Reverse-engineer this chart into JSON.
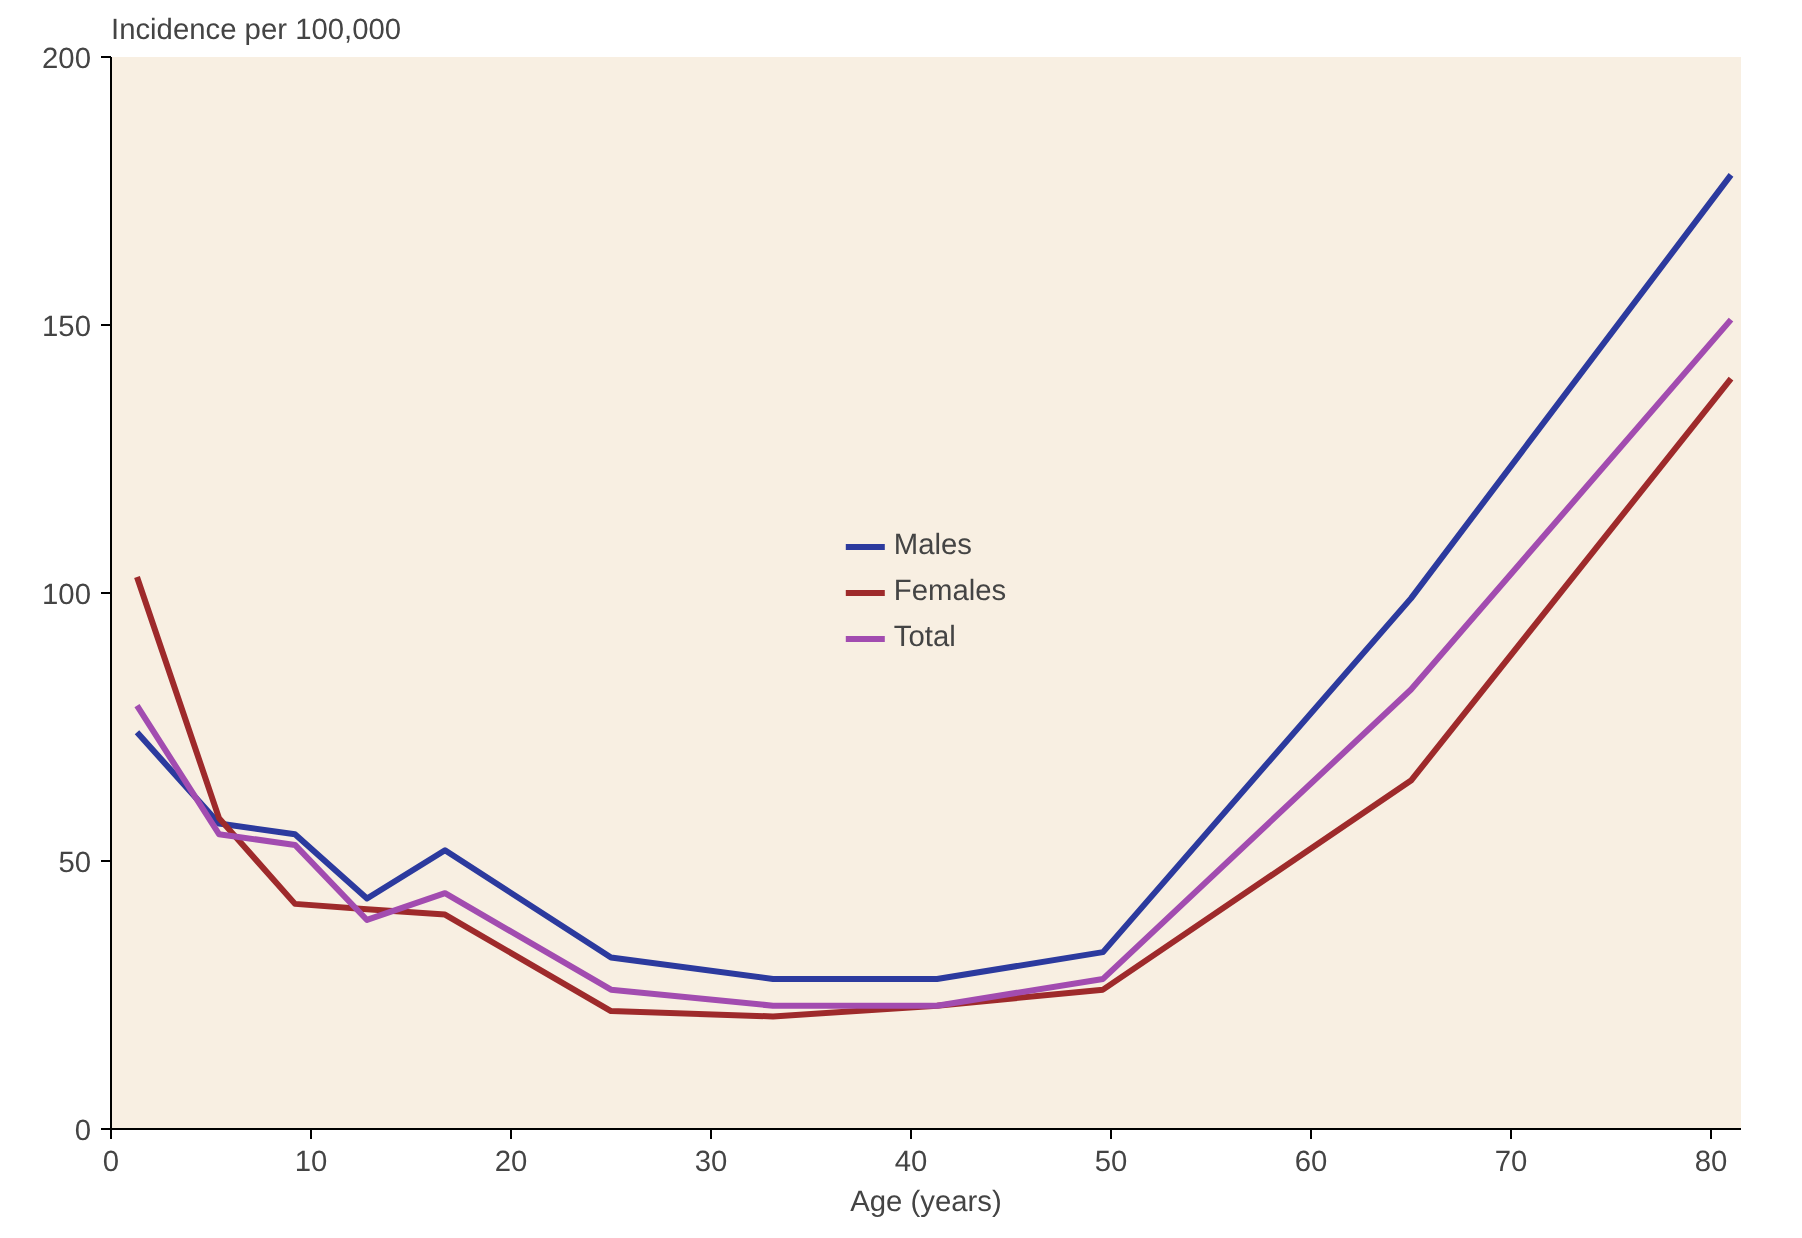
{
  "chart_data": {
    "type": "line",
    "ylabel": "Incidence per 100,000",
    "xlabel": "Age (years)",
    "x": [
      1.3,
      5.4,
      9.2,
      12.8,
      16.7,
      25,
      33.1,
      41.3,
      49.6,
      65,
      81
    ],
    "series": [
      {
        "name": "Males",
        "color": "#2c3a9e",
        "values": [
          74,
          57,
          55,
          43,
          52,
          32,
          28,
          28,
          33,
          99,
          178
        ]
      },
      {
        "name": "Females",
        "color": "#9e2a2b",
        "values": [
          103,
          58,
          42,
          41,
          40,
          22,
          21,
          23,
          26,
          65,
          140
        ]
      },
      {
        "name": "Total",
        "color": "#a24cb0",
        "values": [
          79,
          55,
          53,
          39,
          44,
          26,
          23,
          23,
          28,
          82,
          151
        ]
      }
    ],
    "xlim": [
      0,
      81.5
    ],
    "ylim": [
      0,
      200
    ],
    "xticks": [
      0,
      10,
      20,
      30,
      40,
      50,
      60,
      70,
      80
    ],
    "yticks": [
      0,
      50,
      100,
      150,
      200
    ],
    "grid": false,
    "legend": "center",
    "marker": "none",
    "line_style": "solid"
  }
}
